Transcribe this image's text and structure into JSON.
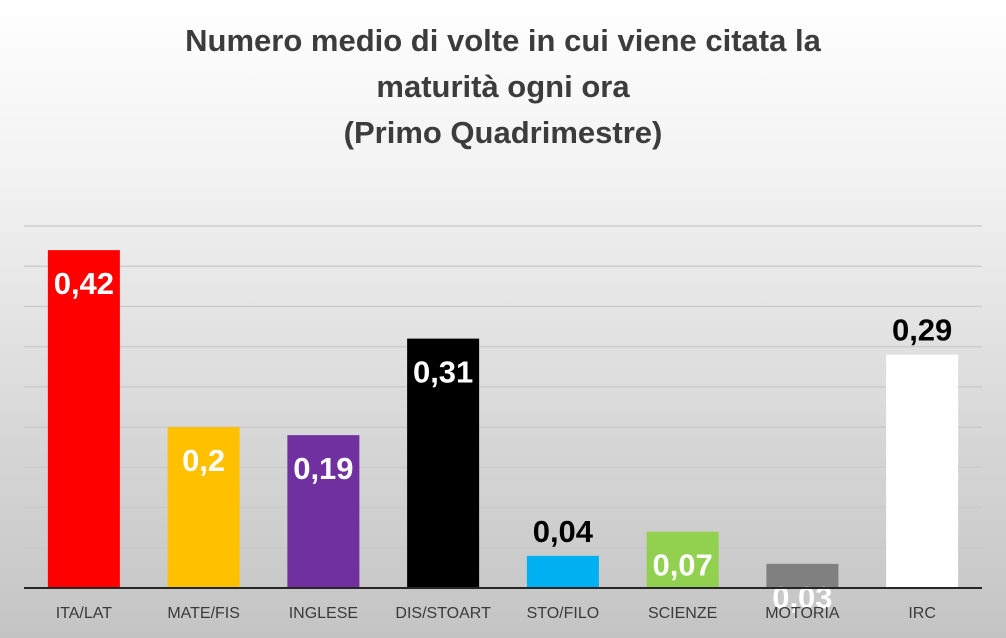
{
  "chart_data": {
    "type": "bar",
    "title": [
      "Numero medio di volte in cui viene citata la",
      "maturità ogni ora",
      "(Primo Quadrimestre)"
    ],
    "categories": [
      "ITA/LAT",
      "MATE/FIS",
      "INGLESE",
      "DIS/STOART",
      "STO/FILO",
      "SCIENZE",
      "MOTORIA",
      "IRC"
    ],
    "values": [
      0.42,
      0.2,
      0.19,
      0.31,
      0.04,
      0.07,
      0.03,
      0.29
    ],
    "value_labels": [
      "0,42",
      "0,2",
      "0,19",
      "0,31",
      "0,04",
      "0,07",
      "0,03",
      "0,29"
    ],
    "bar_colors": [
      "#ff0000",
      "#ffc000",
      "#7030a0",
      "#000000",
      "#00b0f0",
      "#92d050",
      "#808080",
      "#ffffff"
    ],
    "label_colors": [
      "#ffffff",
      "#ffffff",
      "#ffffff",
      "#ffffff",
      "#000000",
      "#ffffff",
      "#ffffff",
      "#000000"
    ],
    "label_inside": [
      true,
      true,
      true,
      true,
      false,
      true,
      true,
      false
    ],
    "ylim": [
      0,
      0.45
    ],
    "gridline_step": 0.05,
    "grid": true,
    "xlabel": "",
    "ylabel": ""
  }
}
